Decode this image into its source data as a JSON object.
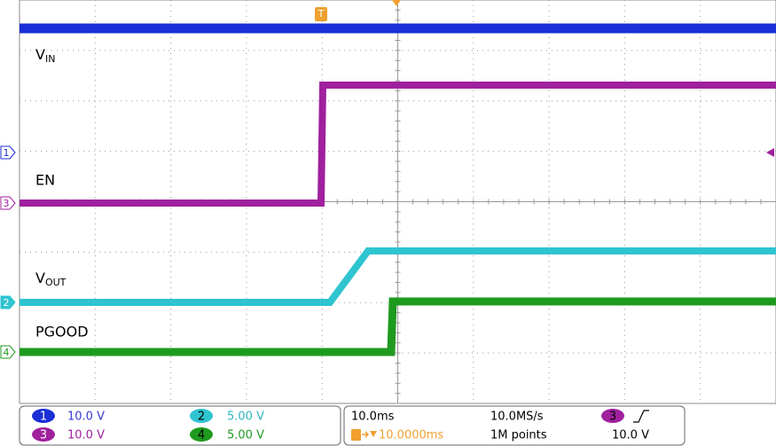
{
  "waveform_labels": [
    {
      "main": "V",
      "sub": "IN"
    },
    {
      "main": "EN"
    },
    {
      "main": "V",
      "sub": "OUT"
    },
    {
      "main": "PGOOD"
    }
  ],
  "channel_markers": [
    "1",
    "3",
    "2",
    "4"
  ],
  "trigger_marker": "T",
  "channels": [
    {
      "number": "1",
      "scale": "10.0 V"
    },
    {
      "number": "2",
      "scale": "5.00 V"
    },
    {
      "number": "3",
      "scale": "10.0 V"
    },
    {
      "number": "4",
      "scale": "5.00 V"
    }
  ],
  "acquisition": {
    "time_scale": "10.0ms",
    "sample_rate": "10.0MS/s",
    "trigger_position": "10.0000ms",
    "record_length": "1M points",
    "trigger_source": "3",
    "trigger_level": "10.0 V"
  }
}
